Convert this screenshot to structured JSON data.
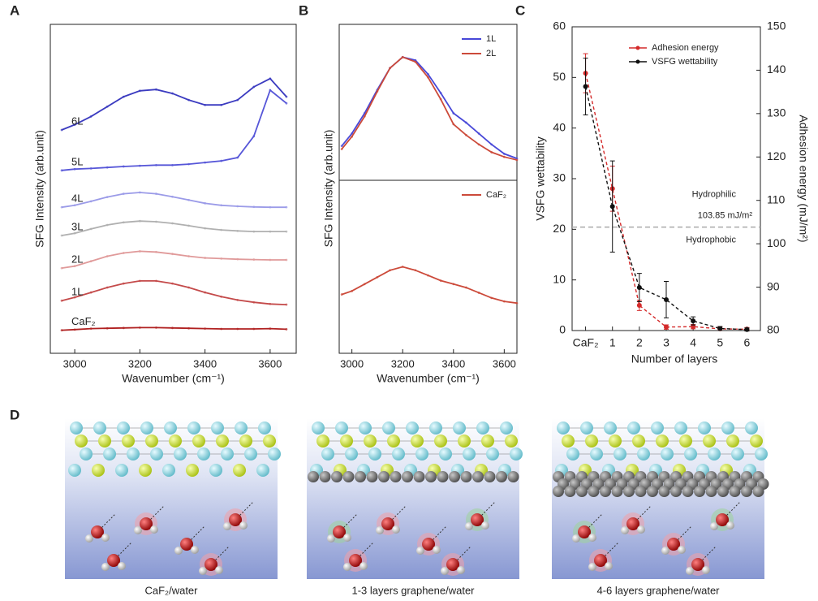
{
  "chart_data": [
    {
      "type": "line",
      "panel": "A",
      "ylabel": "SFG Intensity (arb.unit)",
      "xlabel": "Wavenumber (cm⁻¹)",
      "x": [
        2960,
        3000,
        3050,
        3100,
        3150,
        3200,
        3250,
        3300,
        3350,
        3400,
        3450,
        3500,
        3550,
        3600,
        3650
      ],
      "xlim": [
        2925,
        3680
      ],
      "xticks": [
        3000,
        3200,
        3400,
        3600
      ],
      "ylim": [
        0,
        10
      ],
      "series": [
        {
          "name": "CaF₂",
          "color": "#b02020",
          "values": [
            0.7,
            0.72,
            0.75,
            0.76,
            0.77,
            0.78,
            0.78,
            0.77,
            0.76,
            0.75,
            0.74,
            0.74,
            0.74,
            0.75,
            0.73
          ]
        },
        {
          "name": "1L",
          "color": "#c44a4a",
          "values": [
            1.6,
            1.7,
            1.85,
            2.0,
            2.12,
            2.2,
            2.2,
            2.12,
            2.0,
            1.85,
            1.72,
            1.62,
            1.55,
            1.5,
            1.48
          ]
        },
        {
          "name": "2L",
          "color": "#e09a9a",
          "values": [
            2.59,
            2.65,
            2.8,
            2.95,
            3.05,
            3.1,
            3.08,
            3.02,
            2.95,
            2.9,
            2.88,
            2.86,
            2.85,
            2.84,
            2.84
          ]
        },
        {
          "name": "3L",
          "color": "#b0b0b0",
          "values": [
            3.58,
            3.65,
            3.78,
            3.9,
            3.98,
            4.02,
            4.0,
            3.95,
            3.88,
            3.8,
            3.75,
            3.72,
            3.7,
            3.7,
            3.7
          ]
        },
        {
          "name": "4L",
          "color": "#9b9be8",
          "values": [
            4.44,
            4.5,
            4.62,
            4.75,
            4.85,
            4.89,
            4.85,
            4.76,
            4.66,
            4.56,
            4.5,
            4.47,
            4.45,
            4.44,
            4.44
          ]
        },
        {
          "name": "5L",
          "color": "#5656d8",
          "values": [
            5.56,
            5.6,
            5.62,
            5.65,
            5.68,
            5.7,
            5.72,
            5.72,
            5.75,
            5.8,
            5.85,
            5.95,
            6.6,
            8.0,
            7.6
          ]
        },
        {
          "name": "6L",
          "color": "#3b3bc0",
          "values": [
            6.79,
            6.95,
            7.2,
            7.5,
            7.8,
            7.98,
            8.02,
            7.9,
            7.7,
            7.55,
            7.55,
            7.7,
            8.1,
            8.35,
            7.8
          ]
        }
      ]
    },
    {
      "type": "line",
      "panel": "B",
      "ylabel": "SFG Intensity (arb.unit)",
      "x": [
        2960,
        3000,
        3050,
        3100,
        3150,
        3200,
        3250,
        3300,
        3350,
        3400,
        3450,
        3500,
        3550,
        3600,
        3650
      ],
      "xlim": [
        2950,
        3650
      ],
      "ylim": [
        0,
        10
      ],
      "series": [
        {
          "name": "1L",
          "color": "#4848d8",
          "values": [
            2.2,
            3.0,
            4.3,
            5.8,
            7.2,
            7.9,
            7.7,
            6.8,
            5.6,
            4.3,
            3.7,
            3.0,
            2.3,
            1.7,
            1.4
          ]
        },
        {
          "name": "2L",
          "color": "#cc4a3a",
          "values": [
            2.0,
            2.8,
            4.1,
            5.7,
            7.2,
            7.9,
            7.6,
            6.6,
            5.2,
            3.6,
            2.9,
            2.3,
            1.8,
            1.5,
            1.3
          ]
        }
      ]
    },
    {
      "type": "line",
      "xlabel": "Wavenumber (cm⁻¹)",
      "x": [
        2960,
        3000,
        3050,
        3100,
        3150,
        3200,
        3250,
        3300,
        3350,
        3400,
        3450,
        3500,
        3550,
        3600,
        3650
      ],
      "xlim": [
        2950,
        3650
      ],
      "xticks": [
        3000,
        3200,
        3400,
        3600
      ],
      "ylim": [
        0,
        10
      ],
      "series": [
        {
          "name": "CaF₂",
          "color": "#cc4a3a",
          "values": [
            3.4,
            3.6,
            4.0,
            4.4,
            4.8,
            5.0,
            4.8,
            4.5,
            4.2,
            4.0,
            3.8,
            3.5,
            3.2,
            3.0,
            2.9
          ]
        }
      ]
    },
    {
      "type": "errorbar",
      "panel": "C",
      "xlabel": "Number of layers",
      "ylabel": "VSFG wettability",
      "y2label": "Adhesion energy (mJ/m²)",
      "categories": [
        "CaF₂",
        "1",
        "2",
        "3",
        "4",
        "5",
        "6"
      ],
      "ylim": [
        0,
        60
      ],
      "yticks": [
        0,
        10,
        20,
        30,
        40,
        50,
        60
      ],
      "y2lim": [
        80,
        150
      ],
      "y2ticks": [
        80,
        90,
        100,
        110,
        120,
        130,
        140,
        150
      ],
      "line_style": "dashed",
      "series": [
        {
          "name": "Adhesion energy",
          "color": "#d42a2a",
          "axis": "y2",
          "values": [
            139.3,
            112.7,
            85.8,
            80.8,
            80.9,
            80.4,
            80.3
          ],
          "errors": [
            4.5,
            5.2,
            1.2,
            0.5,
            0.5,
            0.4,
            0.4
          ]
        },
        {
          "name": "VSFG wettability",
          "color": "#111111",
          "values": [
            48.2,
            24.5,
            8.5,
            6.1,
            1.9,
            0.4,
            0.2
          ],
          "errors": [
            5.6,
            9.0,
            2.8,
            3.6,
            0.8,
            0.4,
            0.3
          ]
        }
      ],
      "reference_line": {
        "value": 103.85,
        "axis": "y2",
        "label": "103.85 mJ/m²"
      },
      "annotations": [
        "Hydrophilic",
        "Hydrophobic"
      ]
    }
  ],
  "panel_d": {
    "label": "D",
    "captions": [
      "CaF₂/water",
      "1-3 layers graphene/water",
      "4-6 layers graphene/water"
    ]
  }
}
